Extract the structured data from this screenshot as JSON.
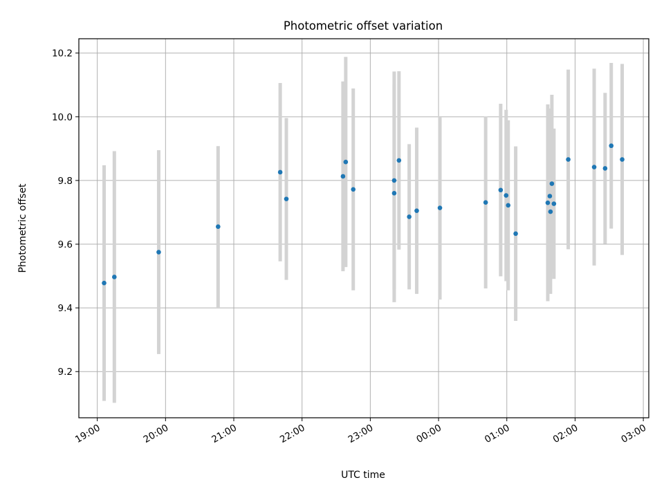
{
  "chart_data": {
    "type": "scatter",
    "title": "Photometric offset variation",
    "xlabel": "UTC time",
    "ylabel": "Photometric offset",
    "grid": true,
    "colors": {
      "points": "#1f77b4",
      "error_bars": "#d3d3d3",
      "grid": "#b0b0b0"
    },
    "x_ticks": [
      "19:00",
      "20:00",
      "21:00",
      "22:00",
      "23:00",
      "00:00",
      "01:00",
      "02:00",
      "03:00"
    ],
    "x_tick_hours": [
      19,
      20,
      21,
      22,
      23,
      24,
      25,
      26,
      27
    ],
    "xlim_hours": [
      18.73,
      27.08
    ],
    "y_ticks": [
      "9.2",
      "9.4",
      "9.6",
      "9.8",
      "10.0",
      "10.2"
    ],
    "y_tick_values": [
      9.2,
      9.4,
      9.6,
      9.8,
      10.0,
      10.2
    ],
    "ylim": [
      9.055,
      10.245
    ],
    "series": [
      {
        "x_hours": [
          19.1,
          19.25,
          19.9,
          20.77,
          21.68,
          21.77,
          22.6,
          22.64,
          22.75,
          23.35,
          23.35,
          23.42,
          23.57,
          23.68,
          24.02,
          24.69,
          24.91,
          24.99,
          25.02,
          25.13,
          25.6,
          25.63,
          25.64,
          25.66,
          25.69,
          25.9,
          26.28,
          26.44,
          26.53,
          26.69
        ],
        "y": [
          9.478,
          9.497,
          9.575,
          9.655,
          9.826,
          9.742,
          9.813,
          9.858,
          9.772,
          9.8,
          9.76,
          9.863,
          9.686,
          9.705,
          9.714,
          9.731,
          9.77,
          9.753,
          9.722,
          9.633,
          9.73,
          9.751,
          9.702,
          9.79,
          9.727,
          9.866,
          9.842,
          9.838,
          9.909,
          9.866
        ],
        "y_err": [
          0.37,
          0.395,
          0.32,
          0.253,
          0.28,
          0.254,
          0.298,
          0.33,
          0.317,
          0.342,
          0.342,
          0.28,
          0.228,
          0.261,
          0.288,
          0.27,
          0.271,
          0.269,
          0.267,
          0.274,
          0.309,
          0.275,
          0.258,
          0.279,
          0.236,
          0.282,
          0.309,
          0.237,
          0.26,
          0.3
        ]
      }
    ]
  }
}
